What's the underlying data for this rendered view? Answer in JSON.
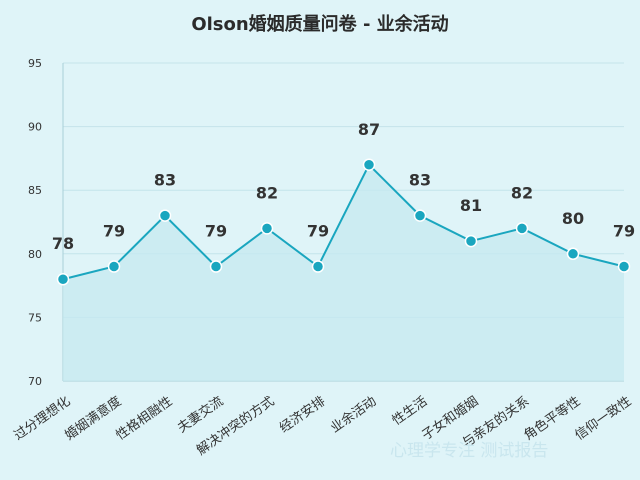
{
  "chart_data": {
    "type": "area",
    "title": "Olson婚姻质量问卷 - 业余活动",
    "categories": [
      "过分理想化",
      "婚姻满意度",
      "性格相融性",
      "夫妻交流",
      "解决冲突的方式",
      "经济安排",
      "业余活动",
      "性生活",
      "子女和婚姻",
      "与亲友的关系",
      "角色平等性",
      "信仰一致性"
    ],
    "values": [
      78,
      79,
      83,
      79,
      82,
      79,
      87,
      83,
      81,
      82,
      80,
      79
    ],
    "ylim": [
      70,
      95
    ],
    "yticks": [
      "70",
      "75",
      "80",
      "85",
      "90",
      "95"
    ],
    "grid": "horizontal",
    "xlabel": "",
    "ylabel": ""
  },
  "colors": {
    "line": "#1aa6bf",
    "fill": "#c6eaf0",
    "marker": "#1aa6bf",
    "background": "#dff4f8"
  },
  "watermark": "心理学专注 测试报告"
}
